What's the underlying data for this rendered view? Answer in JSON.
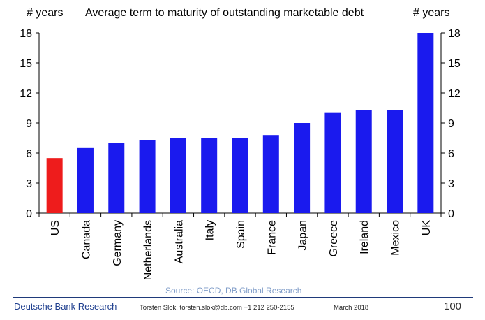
{
  "chart_data": {
    "type": "bar",
    "title": "Average term to maturity of outstanding marketable debt",
    "ylabel_left": "# years",
    "ylabel_right": "# years",
    "xlabel": "",
    "ylim": [
      0,
      18
    ],
    "yticks": [
      0,
      3,
      6,
      9,
      12,
      15,
      18
    ],
    "categories": [
      "US",
      "Canada",
      "Germany",
      "Netherlands",
      "Australia",
      "Italy",
      "Spain",
      "France",
      "Japan",
      "Greece",
      "Ireland",
      "Mexico",
      "UK"
    ],
    "values": [
      5.5,
      6.5,
      7.0,
      7.3,
      7.5,
      7.5,
      7.5,
      7.8,
      9.0,
      10.0,
      10.3,
      10.3,
      18.0
    ],
    "colors": [
      "#ee1c1c",
      "#1a1aee",
      "#1a1aee",
      "#1a1aee",
      "#1a1aee",
      "#1a1aee",
      "#1a1aee",
      "#1a1aee",
      "#1a1aee",
      "#1a1aee",
      "#1a1aee",
      "#1a1aee",
      "#1a1aee"
    ],
    "source": "Source: OECD, DB Global Research"
  },
  "footer": {
    "brand": "Deutsche Bank Research",
    "author": "Torsten Slok, torsten.slok@db.com  +1 212 250-2155",
    "date": "March 2018",
    "page": "100"
  },
  "colors": {
    "brand_blue": "#1f3f8f",
    "source_text": "#7f9cc8"
  }
}
